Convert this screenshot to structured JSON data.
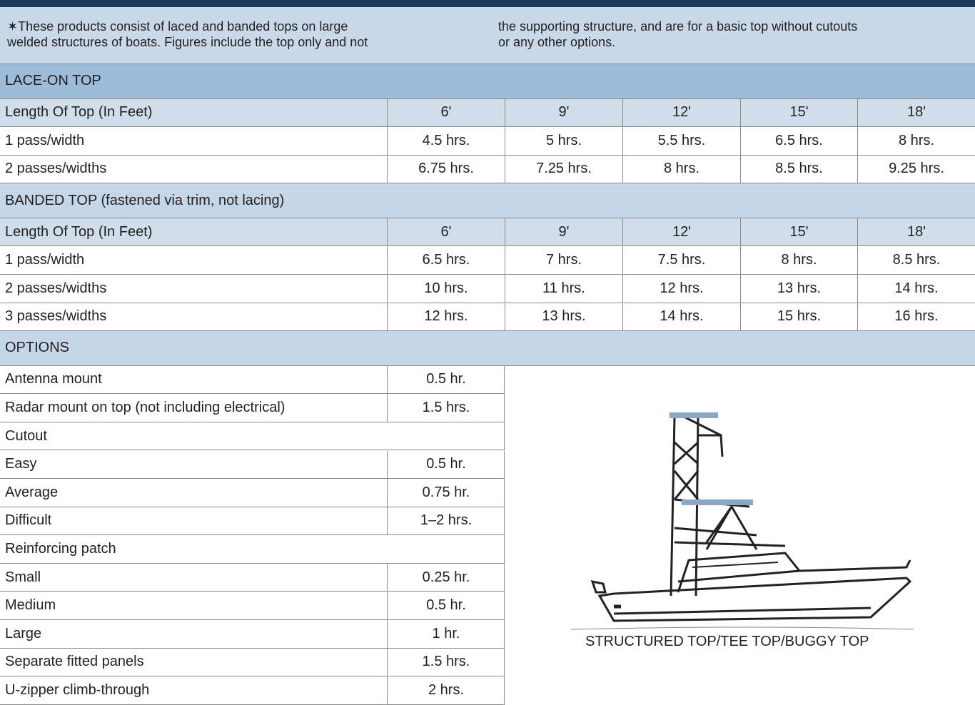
{
  "note": {
    "column_1": [
      "✶These products consist of laced and banded tops on large",
      "welded structures of boats. Figures include the top only and not"
    ],
    "column_2": [
      "the supporting structure, and are for a basic top without cutouts",
      "or any other options."
    ]
  },
  "lace_on_top": {
    "title": "LACE-ON TOP",
    "header": [
      "Length Of Top (In Feet)",
      "6'",
      "9'",
      "12'",
      "15'",
      "18'"
    ],
    "rows": [
      [
        "1 pass/width",
        "4.5 hrs.",
        "5 hrs.",
        "5.5 hrs.",
        "6.5 hrs.",
        "8 hrs."
      ],
      [
        "2 passes/widths",
        "6.75 hrs.",
        "7.25 hrs.",
        "8 hrs.",
        "8.5 hrs.",
        "9.25 hrs."
      ]
    ]
  },
  "banded_top": {
    "title": "BANDED TOP (fastened via trim, not lacing)",
    "header": [
      "Length Of Top (In Feet)",
      "6'",
      "9'",
      "12'",
      "15'",
      "18'"
    ],
    "rows": [
      [
        "1 pass/width",
        "6.5 hrs.",
        "7 hrs.",
        "7.5 hrs.",
        "8 hrs.",
        "8.5 hrs."
      ],
      [
        "2 passes/widths",
        "10 hrs.",
        "11 hrs.",
        "12 hrs.",
        "13 hrs.",
        "14 hrs."
      ],
      [
        "3 passes/widths",
        "12 hrs.",
        "13 hrs.",
        "14 hrs.",
        "15 hrs.",
        "16 hrs."
      ]
    ]
  },
  "options": {
    "title": "OPTIONS",
    "rows": [
      [
        "Antenna mount",
        "0.5 hr."
      ],
      [
        "Radar mount on top (not including electrical)",
        "1.5 hrs."
      ],
      [
        "Cutout"
      ],
      [
        "Easy",
        "0.5 hr."
      ],
      [
        "Average",
        "0.75 hr."
      ],
      [
        "Difficult",
        "1–2 hrs."
      ],
      [
        "Reinforcing patch"
      ],
      [
        "Small",
        "0.25 hr."
      ],
      [
        "Medium",
        "0.5 hr."
      ],
      [
        "Large",
        "1 hr."
      ],
      [
        "Separate fitted panels",
        "1.5 hrs."
      ],
      [
        "U-zipper climb-through",
        "2 hrs."
      ]
    ]
  },
  "figure": {
    "caption": "STRUCTURED TOP/TEE TOP/BUGGY TOP"
  }
}
